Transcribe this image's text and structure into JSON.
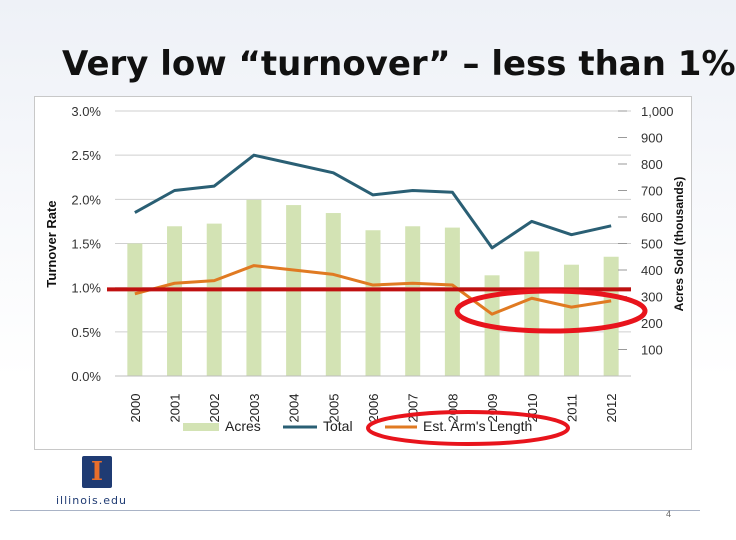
{
  "slide": {
    "title": "Very low “turnover” – less than 1%",
    "page_number": "4",
    "logo_letter": "I",
    "logo_text": "illinois.edu"
  },
  "colors": {
    "acres": "#d3e3b4",
    "total": "#2a5f74",
    "arms_length": "#e07a22",
    "reference_line": "#c01010",
    "highlight": "#e8141c"
  },
  "chart_data": {
    "type": "bar",
    "title": "",
    "categories": [
      "2000",
      "2001",
      "2002",
      "2003",
      "2004",
      "2005",
      "2006",
      "2007",
      "2008",
      "2009",
      "2010",
      "2011",
      "2012"
    ],
    "ylabel": "Turnover Rate",
    "y2label": "Acres Sold (thousands)",
    "ylim": [
      0,
      3.0
    ],
    "y2lim": [
      0,
      1000
    ],
    "yticks": [
      "0.0%",
      "0.5%",
      "1.0%",
      "1.5%",
      "2.0%",
      "2.5%",
      "3.0%"
    ],
    "y2ticks": [
      "100",
      "200",
      "300",
      "400",
      "500",
      "600",
      "700",
      "800",
      "900",
      "1,000"
    ],
    "grid": true,
    "series": [
      {
        "name": "Acres",
        "type": "bar",
        "axis": "right",
        "values": [
          500,
          565,
          575,
          665,
          645,
          615,
          550,
          565,
          560,
          380,
          470,
          420,
          450
        ]
      },
      {
        "name": "Total",
        "type": "line",
        "axis": "left",
        "values": [
          1.85,
          2.1,
          2.15,
          2.5,
          2.4,
          2.3,
          2.05,
          2.1,
          2.08,
          1.45,
          1.75,
          1.6,
          1.7
        ]
      },
      {
        "name": "Est. Arm's Length",
        "type": "line",
        "axis": "left",
        "values": [
          0.93,
          1.05,
          1.08,
          1.25,
          1.2,
          1.15,
          1.03,
          1.05,
          1.03,
          0.7,
          0.88,
          0.78,
          0.85
        ]
      }
    ],
    "reference_line": {
      "axis": "left",
      "value": 0.98
    },
    "legend": {
      "placement": "bottom",
      "items": [
        "Acres",
        "Total",
        "Est. Arm's Length"
      ]
    },
    "annotations": [
      "red ellipse around 2009-2012 arm's length values",
      "red ellipse around Est. Arm's Length legend entry"
    ]
  }
}
